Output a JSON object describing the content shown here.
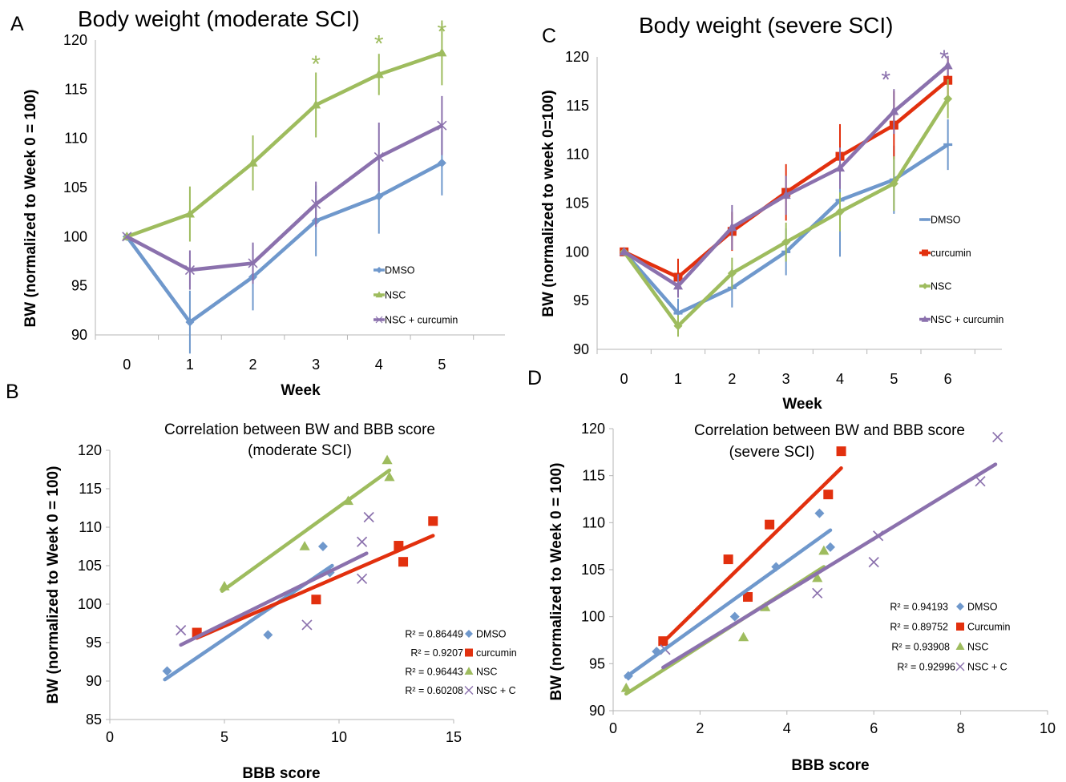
{
  "colors": {
    "blue": "#6f98cc",
    "green": "#9ebc5e",
    "purple": "#8b71ad",
    "red": "#e2300e",
    "grid": "#b5b5b5"
  },
  "chart_data": [
    {
      "panel": "A",
      "type": "line",
      "title": "Body weight (moderate SCI)",
      "xlabel": "Week",
      "ylabel": "BW (normalized to Week 0 = 100)",
      "x": [
        0,
        1,
        2,
        3,
        4,
        5
      ],
      "x_ticks": [
        "0",
        "1",
        "2",
        "3",
        "4",
        "5"
      ],
      "ylim": [
        90,
        120
      ],
      "y_ticks": [
        "90",
        "95",
        "100",
        "105",
        "110",
        "115",
        "120"
      ],
      "grid": false,
      "legend_position": "lower-right",
      "series": [
        {
          "name": "DMSO",
          "marker": "diamond",
          "color": "#6f98cc",
          "values": [
            100,
            91.3,
            95.9,
            101.6,
            104.1,
            107.5
          ],
          "errors": [
            0,
            3.2,
            3.4,
            3.6,
            3.8,
            3.3
          ]
        },
        {
          "name": "NSC",
          "marker": "triangle",
          "color": "#9ebc5e",
          "values": [
            100,
            102.3,
            107.5,
            113.4,
            116.5,
            118.7
          ],
          "errors": [
            0,
            2.8,
            2.8,
            3.3,
            2.1,
            3.3
          ]
        },
        {
          "name": "NSC + curcumin",
          "marker": "cross",
          "color": "#8b71ad",
          "values": [
            100,
            96.6,
            97.3,
            103.3,
            108.1,
            111.3
          ],
          "errors": [
            0,
            2.0,
            2.1,
            2.3,
            3.5,
            3.0
          ]
        }
      ],
      "annotations": [
        {
          "text": "*",
          "x": 3,
          "y": 118.2,
          "color": "#9ebc5e"
        },
        {
          "text": "*",
          "x": 4,
          "y": 120.3,
          "color": "#9ebc5e"
        },
        {
          "text": "*",
          "x": 5,
          "y": 121.5,
          "color": "#9ebc5e"
        }
      ]
    },
    {
      "panel": "B",
      "type": "scatter",
      "title": "Correlation between BW and BBB score",
      "subtitle": "(moderate SCI)",
      "xlabel": "BBB score",
      "ylabel": "BW (normalized to Week 0 = 100)",
      "xlim": [
        0,
        15
      ],
      "x_ticks": [
        "0",
        "5",
        "10",
        "15"
      ],
      "ylim": [
        85,
        120
      ],
      "y_ticks": [
        "85",
        "90",
        "95",
        "100",
        "105",
        "110",
        "115",
        "120"
      ],
      "grid": false,
      "legend_position": "lower-right",
      "series": [
        {
          "name": "DMSO",
          "marker": "diamond",
          "color": "#6f98cc",
          "r2": "R² = 0.86449",
          "points": [
            [
              2.5,
              91.3
            ],
            [
              6.9,
              96.0
            ],
            [
              9.3,
              107.5
            ],
            [
              9.6,
              104.1
            ]
          ],
          "trend": [
            [
              2.4,
              90.2
            ],
            [
              9.7,
              105.0
            ]
          ]
        },
        {
          "name": "curcumin",
          "marker": "square",
          "color": "#e2300e",
          "r2": "R² = 0.9207",
          "points": [
            [
              3.8,
              96.3
            ],
            [
              9.0,
              100.6
            ],
            [
              12.6,
              107.6
            ],
            [
              12.8,
              105.5
            ],
            [
              14.1,
              110.8
            ]
          ],
          "trend": [
            [
              3.8,
              95.6
            ],
            [
              14.1,
              108.9
            ]
          ]
        },
        {
          "name": "NSC",
          "marker": "triangle",
          "color": "#9ebc5e",
          "r2": "R² = 0.96443",
          "points": [
            [
              5.0,
              102.3
            ],
            [
              8.5,
              107.5
            ],
            [
              10.4,
              113.4
            ],
            [
              12.1,
              118.7
            ],
            [
              12.2,
              116.5
            ]
          ],
          "trend": [
            [
              4.9,
              101.7
            ],
            [
              12.2,
              117.4
            ]
          ]
        },
        {
          "name": "NSC + C",
          "marker": "cross",
          "color": "#8b71ad",
          "r2": "R² = 0.60208",
          "points": [
            [
              3.1,
              96.6
            ],
            [
              8.6,
              97.3
            ],
            [
              11.0,
              103.3
            ],
            [
              11.0,
              108.1
            ],
            [
              11.3,
              111.3
            ]
          ],
          "trend": [
            [
              3.1,
              94.7
            ],
            [
              11.2,
              106.6
            ]
          ]
        }
      ]
    },
    {
      "panel": "C",
      "type": "line",
      "title": "Body weight (severe SCI)",
      "xlabel": "Week",
      "ylabel": "BW (normalized to week 0=100)",
      "x": [
        0,
        1,
        2,
        3,
        4,
        5,
        6
      ],
      "x_ticks": [
        "0",
        "1",
        "2",
        "3",
        "4",
        "5",
        "6"
      ],
      "ylim": [
        90,
        120
      ],
      "y_ticks": [
        "90",
        "95",
        "100",
        "105",
        "110",
        "115",
        "120"
      ],
      "grid": false,
      "legend_position": "center-right",
      "series": [
        {
          "name": "DMSO",
          "marker": "dash",
          "color": "#6f98cc",
          "values": [
            100,
            93.7,
            96.3,
            100.0,
            105.3,
            107.4,
            111.0
          ],
          "errors": [
            0,
            1.5,
            2.0,
            2.4,
            5.8,
            3.5,
            2.6
          ]
        },
        {
          "name": "curcumin",
          "marker": "square",
          "color": "#e2300e",
          "values": [
            100,
            97.4,
            102.1,
            106.1,
            109.8,
            113.0,
            117.6
          ],
          "errors": [
            0,
            1.9,
            2.0,
            2.9,
            3.3,
            3.5,
            2.3
          ]
        },
        {
          "name": "NSC",
          "marker": "diamond",
          "color": "#9ebc5e",
          "values": [
            100,
            92.4,
            97.8,
            101.0,
            104.1,
            107.0,
            115.7
          ],
          "errors": [
            0,
            1.1,
            1.6,
            2.0,
            2.0,
            2.8,
            2.0
          ]
        },
        {
          "name": "NSC + curcumin",
          "marker": "triangle",
          "color": "#8b71ad",
          "values": [
            100,
            96.5,
            102.5,
            105.8,
            108.6,
            114.4,
            119.1
          ],
          "errors": [
            0,
            1.2,
            2.3,
            2.0,
            2.1,
            2.3,
            1.0
          ]
        }
      ],
      "annotations": [
        {
          "text": "*",
          "x": 4.85,
          "y": 118.3,
          "color": "#8b71ad"
        },
        {
          "text": "*",
          "x": 5.93,
          "y": 120.5,
          "color": "#8b71ad"
        }
      ]
    },
    {
      "panel": "D",
      "type": "scatter",
      "title": "Correlation between BW and BBB score",
      "subtitle": "(severe SCI)",
      "xlabel": "BBB score",
      "ylabel": "BW (normalized to Week 0 = 100)",
      "xlim": [
        0,
        10
      ],
      "x_ticks": [
        "0",
        "2",
        "4",
        "6",
        "8",
        "10"
      ],
      "ylim": [
        90,
        120
      ],
      "y_ticks": [
        "90",
        "95",
        "100",
        "105",
        "110",
        "115",
        "120"
      ],
      "grid": false,
      "legend_position": "lower-right",
      "series": [
        {
          "name": "DMSO",
          "marker": "diamond",
          "color": "#6f98cc",
          "r2": "R² = 0.94193",
          "points": [
            [
              0.35,
              93.7
            ],
            [
              1.0,
              96.3
            ],
            [
              2.8,
              100.0
            ],
            [
              3.75,
              105.3
            ],
            [
              4.75,
              111.0
            ],
            [
              5.0,
              107.4
            ]
          ],
          "trend": [
            [
              0.3,
              93.6
            ],
            [
              5.0,
              109.2
            ]
          ]
        },
        {
          "name": "Curcumin",
          "marker": "square",
          "color": "#e2300e",
          "r2": "R² = 0.89752",
          "points": [
            [
              1.15,
              97.4
            ],
            [
              2.65,
              106.1
            ],
            [
              3.1,
              102.1
            ],
            [
              3.6,
              109.8
            ],
            [
              4.95,
              113.0
            ],
            [
              5.25,
              117.6
            ]
          ],
          "trend": [
            [
              1.2,
              97.5
            ],
            [
              5.25,
              115.8
            ]
          ]
        },
        {
          "name": "NSC",
          "marker": "triangle",
          "color": "#9ebc5e",
          "r2": "R² = 0.93908",
          "points": [
            [
              0.3,
              92.4
            ],
            [
              3.0,
              97.8
            ],
            [
              3.5,
              101.0
            ],
            [
              4.7,
              104.1
            ],
            [
              4.85,
              107.0
            ]
          ],
          "trend": [
            [
              0.3,
              91.8
            ],
            [
              4.85,
              105.3
            ]
          ]
        },
        {
          "name": "NSC + C",
          "marker": "cross",
          "color": "#8b71ad",
          "r2": "R² = 0.92996",
          "points": [
            [
              1.2,
              96.5
            ],
            [
              4.7,
              102.5
            ],
            [
              6.0,
              105.8
            ],
            [
              6.1,
              108.6
            ],
            [
              8.45,
              114.4
            ],
            [
              8.85,
              119.1
            ]
          ],
          "trend": [
            [
              1.15,
              94.6
            ],
            [
              8.8,
              116.2
            ]
          ]
        }
      ]
    }
  ]
}
